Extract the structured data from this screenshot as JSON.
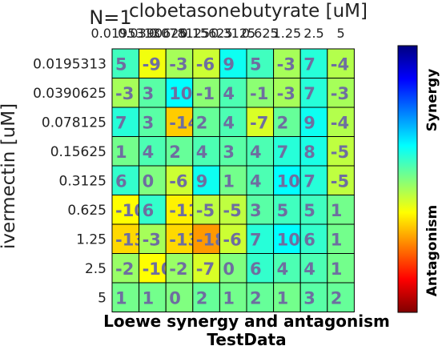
{
  "chart_data": {
    "type": "heatmap",
    "n_label": "N=1",
    "xlabel": "clobetasonebutyrate [uM]",
    "ylabel": "ivermectin [uM]",
    "x_ticks": [
      "0.0195313",
      "0.0390625",
      "0.078125",
      "0.15625",
      "0.3125",
      "0.625",
      "1.25",
      "2.5",
      "5"
    ],
    "y_ticks": [
      "0.0195313",
      "0.0390625",
      "0.078125",
      "0.15625",
      "0.3125",
      "0.625",
      "1.25",
      "2.5",
      "5"
    ],
    "values": [
      [
        5,
        -9,
        -3,
        -6,
        9,
        5,
        -3,
        7,
        -4
      ],
      [
        -3,
        3,
        10,
        -1,
        4,
        -1,
        -3,
        7,
        -3
      ],
      [
        7,
        3,
        -14,
        2,
        4,
        -7,
        2,
        9,
        -4
      ],
      [
        1,
        4,
        2,
        4,
        3,
        4,
        7,
        8,
        -5
      ],
      [
        6,
        0,
        -6,
        9,
        1,
        4,
        10,
        7,
        -5
      ],
      [
        -10,
        6,
        -11,
        -5,
        -5,
        3,
        5,
        5,
        1
      ],
      [
        -13,
        -3,
        -13,
        -18,
        -6,
        7,
        10,
        6,
        1
      ],
      [
        -2,
        -10,
        -2,
        -7,
        0,
        6,
        4,
        4,
        1
      ],
      [
        1,
        1,
        0,
        2,
        1,
        2,
        1,
        3,
        2
      ]
    ],
    "color_range": [
      -40,
      40
    ],
    "colorbar_labels": {
      "top": "Synergy",
      "bottom": "Antagonism"
    },
    "title_line1": "Loewe synergy and antagonism",
    "title_line2": "TestData",
    "colors": {
      "value_text": "#6e6ea0",
      "grid": "#000000"
    }
  }
}
